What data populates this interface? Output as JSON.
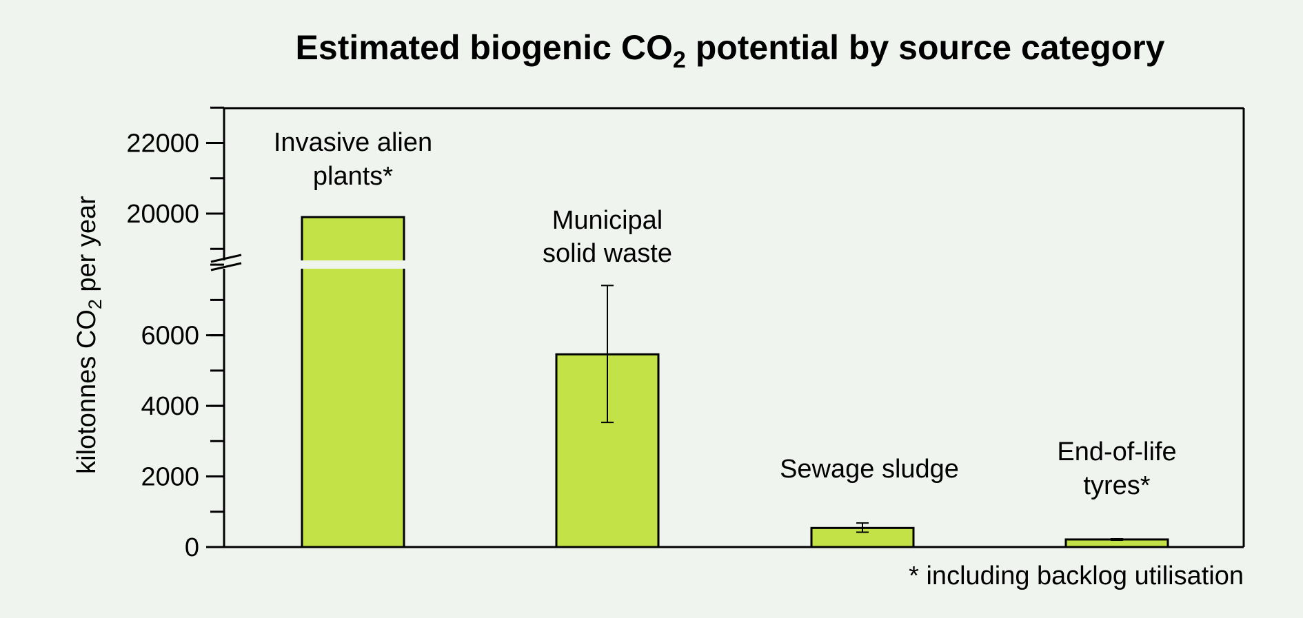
{
  "chart_data": {
    "type": "bar",
    "title": "Estimated biogenic CO",
    "title_sub": "2",
    "title_tail": " potential by source category",
    "ylabel": "kilotonnes CO",
    "ylabel_sub": "2",
    "ylabel_tail": " per year",
    "xlabel": "",
    "categories": [
      [
        "Invasive alien",
        "plants*"
      ],
      [
        "Municipal",
        "solid waste"
      ],
      [
        "Sewage sludge"
      ],
      [
        "End-of-life",
        "tyres*"
      ]
    ],
    "values": [
      19900,
      5460,
      540,
      215
    ],
    "error_low": [
      null,
      3530,
      420,
      195
    ],
    "error_high": [
      null,
      7410,
      680,
      235
    ],
    "y_axis_break": {
      "lower_range": [
        0,
        8000
      ],
      "upper_range": [
        18600,
        23000
      ]
    },
    "y_ticks": [
      "0",
      "2000",
      "4000",
      "6000",
      "20000",
      "22000"
    ],
    "y_tick_values": [
      0,
      2000,
      4000,
      6000,
      20000,
      22000
    ],
    "footnote": "* including backlog utilisation",
    "colors": {
      "bar": "#c2e247",
      "background": "#eff4ee"
    },
    "grid": false
  }
}
